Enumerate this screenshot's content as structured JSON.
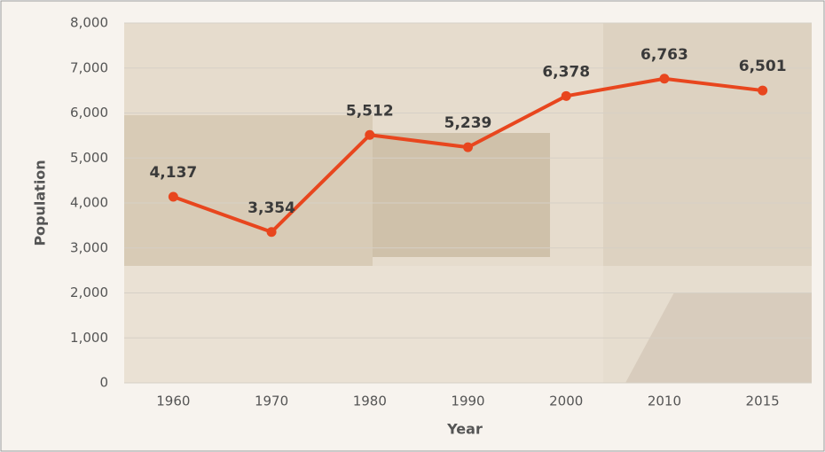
{
  "chart_data": {
    "type": "line",
    "x_label": "Year",
    "y_label": "Population",
    "categories": [
      "1960",
      "1970",
      "1980",
      "1990",
      "2000",
      "2010",
      "2015"
    ],
    "series": [
      {
        "name": "Population",
        "color": "#e8461e",
        "values": [
          4137,
          3354,
          5512,
          5239,
          6378,
          6763,
          6501
        ],
        "value_labels": [
          "4,137",
          "3,354",
          "5,512",
          "5,239",
          "6,378",
          "6,763",
          "6,501"
        ]
      }
    ],
    "ylim": [
      0,
      8000
    ],
    "yticks": [
      0,
      {
        "value": 1000,
        "label": "1,000"
      },
      {
        "value": 2000,
        "label": "2,000"
      },
      {
        "value": 3000,
        "label": "3,000"
      },
      {
        "value": 4000,
        "label": "4,000"
      },
      {
        "value": 5000,
        "label": "5,000"
      },
      {
        "value": 6000,
        "label": "6,000"
      },
      {
        "value": 7000,
        "label": "7,000"
      },
      {
        "value": 8000,
        "label": "8,000"
      }
    ],
    "grid": true
  }
}
